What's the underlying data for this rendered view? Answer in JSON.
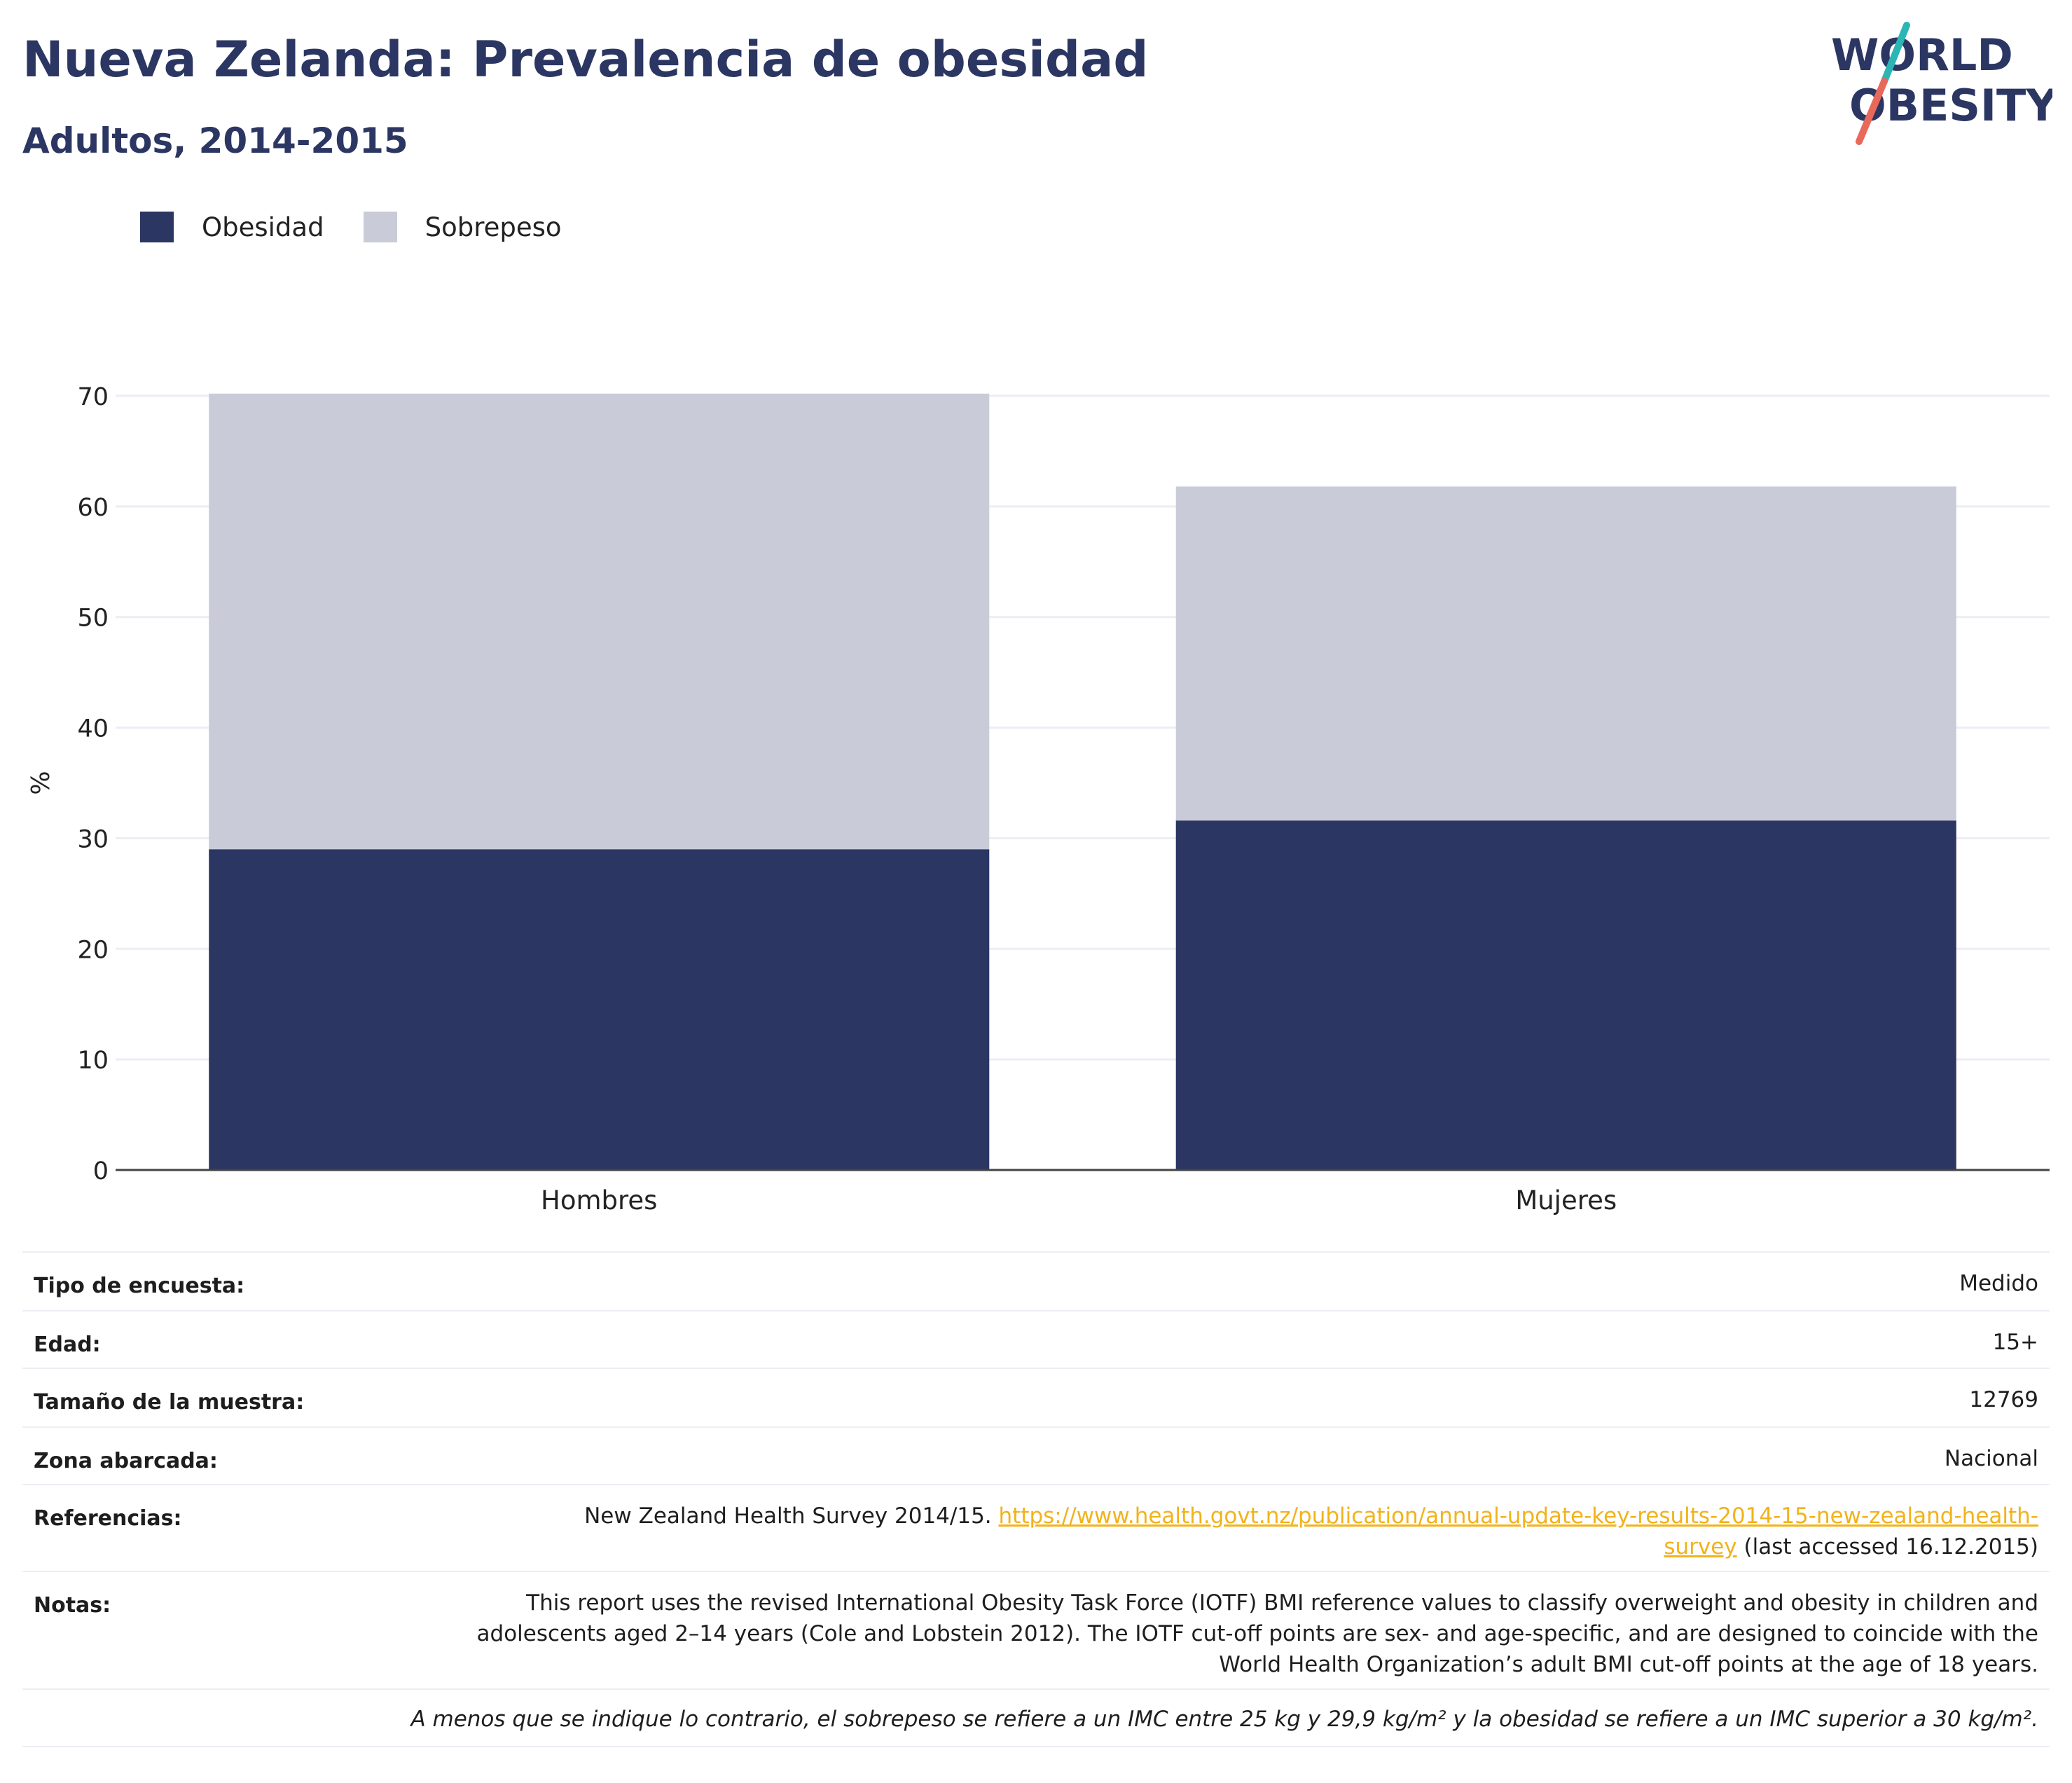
{
  "header": {
    "title": "Nueva Zelanda: Prevalencia de obesidad",
    "subtitle": "Adultos, 2014-2015"
  },
  "logo": {
    "line1": "WORLD",
    "line2": "OBESITY",
    "colors": {
      "text": "#2b3663",
      "slash_top": "#2bb5b5",
      "slash_bottom": "#e8685a"
    }
  },
  "colors": {
    "obesidad": "#2b3663",
    "sobrepeso": "#c9ccd8",
    "axis": "#444444",
    "grid": "#eceef4"
  },
  "chart_data": {
    "type": "bar",
    "stacked": true,
    "categories": [
      "Hombres",
      "Mujeres"
    ],
    "series": [
      {
        "name": "Obesidad",
        "values": [
          29.0,
          31.6
        ]
      },
      {
        "name": "Sobrepeso",
        "values": [
          41.2,
          30.2
        ]
      }
    ],
    "title": "",
    "xlabel": "",
    "ylabel": "%",
    "ylim": [
      0,
      70
    ],
    "yticks": [
      0,
      10,
      20,
      30,
      40,
      50,
      60,
      70
    ],
    "grid": true,
    "legend": "top-left"
  },
  "info": {
    "survey_type_label": "Tipo de encuesta:",
    "survey_type_value": "Medido",
    "age_label": "Edad:",
    "age_value": "15+",
    "sample_label": "Tamaño de la muestra:",
    "sample_value": "12769",
    "area_label": "Zona abarcada:",
    "area_value": "Nacional",
    "references_label": "Referencias:",
    "references_text": "New Zealand Health Survey 2014/15.",
    "references_url": "https://www.health.govt.nz/publication/annual-update-key-results-2014-15-new-zealand-health-survey",
    "references_suffix": "(last accessed 16.12.2015)",
    "notes_label": "Notas:",
    "notes_value": "This report uses the revised International Obesity Task Force (IOTF) BMI reference values to classify overweight and obesity in children and adolescents aged 2–14 years (Cole and Lobstein 2012). The IOTF cut-off points are sex- and age-specific, and are designed to coincide with the World Health Organization’s adult BMI cut-off points at the age of 18 years.",
    "footnote": "A menos que se indique lo contrario, el sobrepeso se refiere a un IMC entre 25 kg y 29,9 kg/m² y la obesidad se refiere a un IMC superior a 30 kg/m²."
  }
}
